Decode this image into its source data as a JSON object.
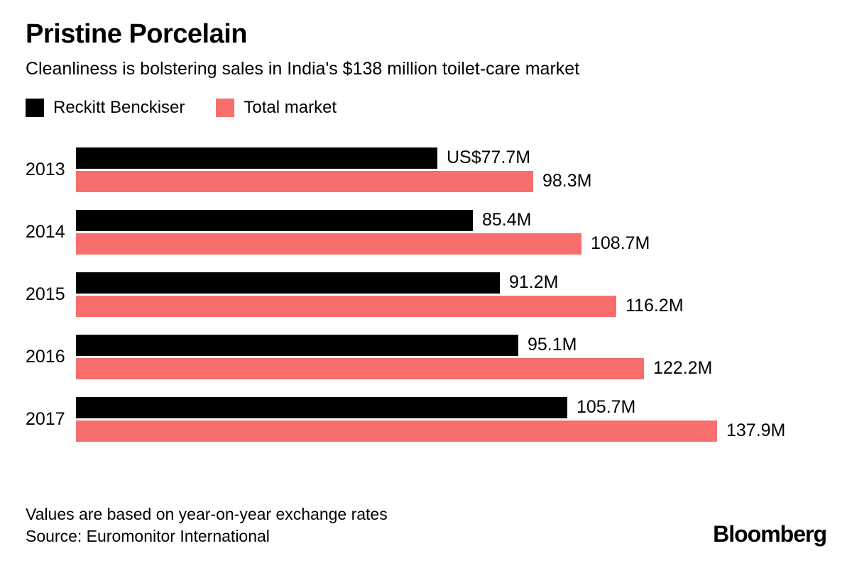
{
  "header": {
    "title": "Pristine Porcelain",
    "subtitle": "Cleanliness is bolstering sales in India's $138 million toilet-care market"
  },
  "chart_data": {
    "type": "bar",
    "orientation": "horizontal",
    "title": "Pristine Porcelain",
    "subtitle": "Cleanliness is bolstering sales in India's $138 million toilet-care market",
    "categories": [
      "2013",
      "2014",
      "2015",
      "2016",
      "2017"
    ],
    "series": [
      {
        "name": "Reckitt Benckiser",
        "color": "#000000",
        "values": [
          77.7,
          85.4,
          91.2,
          95.1,
          105.7
        ],
        "labels": [
          "US$77.7M",
          "85.4M",
          "91.2M",
          "95.1M",
          "105.7M"
        ]
      },
      {
        "name": "Total market",
        "color": "#f86e6c",
        "values": [
          98.3,
          108.7,
          116.2,
          122.2,
          137.9
        ],
        "labels": [
          "98.3M",
          "108.7M",
          "116.2M",
          "122.2M",
          "137.9M"
        ]
      }
    ],
    "xlim": [
      0,
      140
    ],
    "unit": "USD millions",
    "grid": false,
    "legend_position": "top"
  },
  "footer": {
    "note": "Values are based on year-on-year exchange rates",
    "source": "Source: Euromonitor International",
    "brand": "Bloomberg"
  }
}
